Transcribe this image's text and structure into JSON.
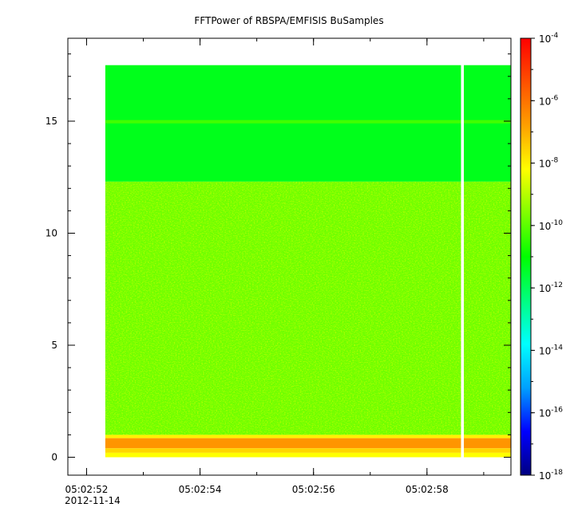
{
  "chart_data": {
    "type": "heatmap",
    "title": "FFTPower of RBSPA/EMFISIS  BuSamples",
    "xlabel": "",
    "ylabel": "",
    "x_axis": {
      "type": "time",
      "range": [
        "05:02:51.67",
        "05:02:59.48"
      ],
      "ticks": [
        "05:02:52",
        "05:02:54",
        "05:02:56",
        "05:02:58"
      ],
      "minor_tick_step_s": 1,
      "first_tick_date": "2012-11-14"
    },
    "y_axis": {
      "range": [
        -0.8,
        18.7
      ],
      "ticks": [
        0,
        5,
        10,
        15
      ]
    },
    "colorbar": {
      "scale": "log",
      "range": [
        1e-18,
        0.0001
      ],
      "ticks": [
        {
          "value": 1e-18,
          "base": "10",
          "exp": "-18"
        },
        {
          "value": 1e-16,
          "base": "10",
          "exp": "-16"
        },
        {
          "value": 1e-14,
          "base": "10",
          "exp": "-14"
        },
        {
          "value": 1e-12,
          "base": "10",
          "exp": "-12"
        },
        {
          "value": 1e-10,
          "base": "10",
          "exp": "-10"
        },
        {
          "value": 1e-08,
          "base": "10",
          "exp": "-8"
        },
        {
          "value": 1e-06,
          "base": "10",
          "exp": "-6"
        },
        {
          "value": 0.0001,
          "base": "10",
          "exp": "-4"
        }
      ],
      "colors": [
        "#000080",
        "#0000ff",
        "#00a0ff",
        "#00ffff",
        "#00ff80",
        "#00ff00",
        "#80ff00",
        "#ffff00",
        "#ffa000",
        "#ff5000",
        "#ff0000"
      ]
    },
    "data_coverage": {
      "x_start": "05:02:52.33",
      "x_end": "05:02:59.48",
      "y_max": 17.5,
      "gap": {
        "start": "05:02:58.60",
        "end": "05:02:58.65"
      }
    },
    "bands": [
      {
        "y_from": 12.3,
        "y_to": 17.5,
        "log10_power": -11.3
      },
      {
        "y_from": 14.9,
        "y_to": 15.05,
        "log10_power": -10.3
      },
      {
        "y_from": 1.0,
        "y_to": 12.3,
        "log10_power": -9.8
      },
      {
        "y_from": 0.85,
        "y_to": 1.0,
        "log10_power": -8.0
      },
      {
        "y_from": 0.4,
        "y_to": 0.85,
        "log10_power": -6.6
      },
      {
        "y_from": 0.2,
        "y_to": 0.4,
        "log10_power": -7.6
      },
      {
        "y_from": 0.0,
        "y_to": 0.2,
        "log10_power": -8.2
      }
    ],
    "grid": false
  }
}
